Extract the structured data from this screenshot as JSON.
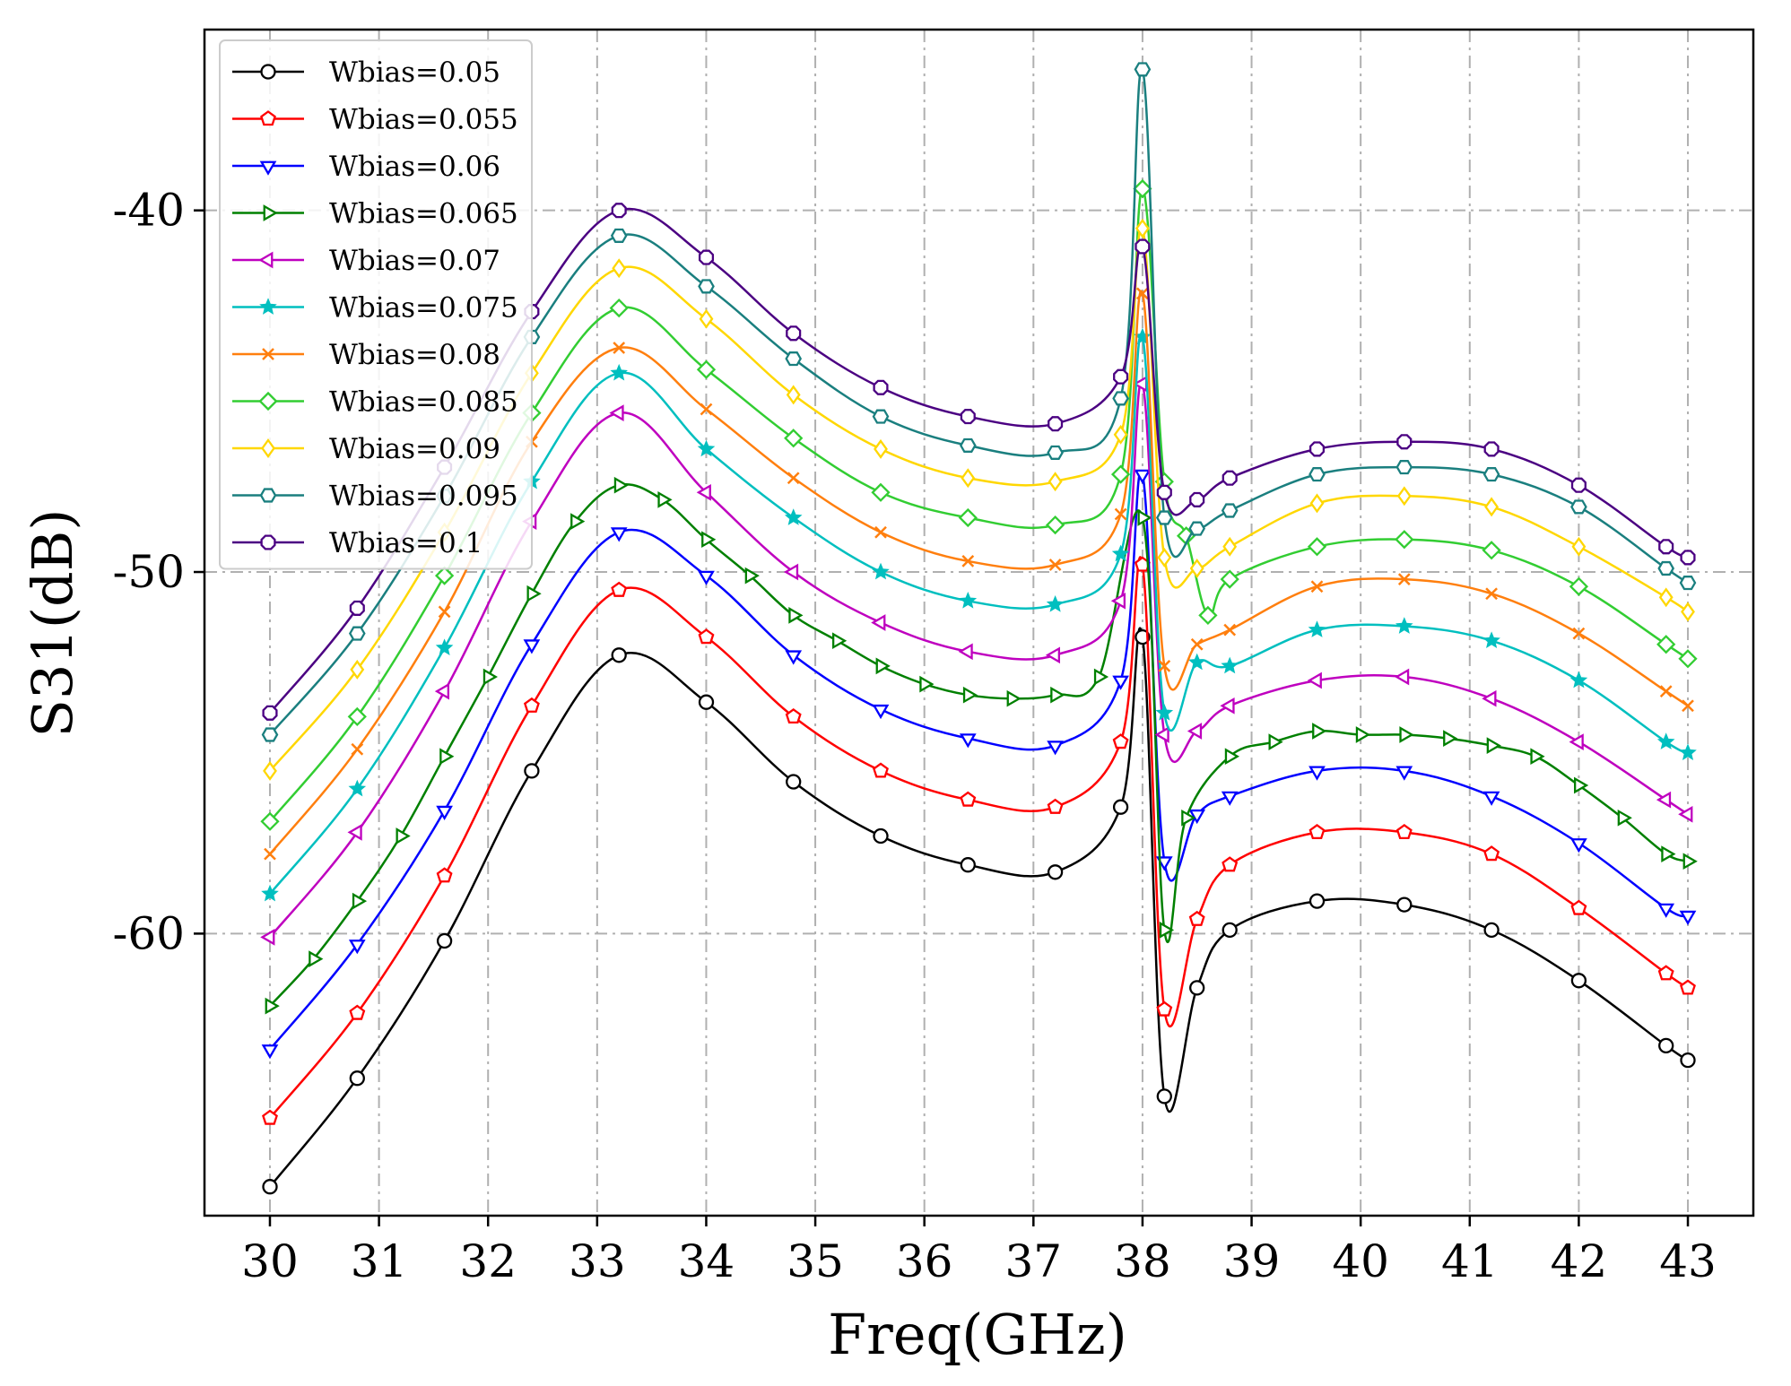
{
  "chart_data": {
    "type": "line",
    "title": "",
    "xlabel": "Freq(GHz)",
    "ylabel": "S31(dB)",
    "xlim": [
      29.4,
      43.6
    ],
    "ylim": [
      -67.8,
      -35.0
    ],
    "xticks": [
      30,
      31,
      32,
      33,
      34,
      35,
      36,
      37,
      38,
      39,
      40,
      41,
      42,
      43
    ],
    "yticks": [
      -60,
      -50,
      -40
    ],
    "grid": true,
    "legend_position": "top-left",
    "series": [
      {
        "name": "Wbias=0.05",
        "color": "#000000",
        "marker": "circle",
        "x": [
          30,
          30.8,
          31.6,
          32.4,
          33.2,
          34,
          34.8,
          35.6,
          36.4,
          37.2,
          37.8,
          38.0,
          38.2,
          38.5,
          38.8,
          39.6,
          40.4,
          41.2,
          42,
          42.8,
          43
        ],
        "y": [
          -67.0,
          -64.0,
          -60.2,
          -55.5,
          -52.3,
          -53.6,
          -55.8,
          -57.3,
          -58.1,
          -58.3,
          -56.5,
          -51.8,
          -64.5,
          -61.5,
          -59.9,
          -59.1,
          -59.2,
          -59.9,
          -61.3,
          -63.1,
          -63.5
        ]
      },
      {
        "name": "Wbias=0.055",
        "color": "#ff0000",
        "marker": "pentagon",
        "x": [
          30,
          30.8,
          31.6,
          32.4,
          33.2,
          34,
          34.8,
          35.6,
          36.4,
          37.2,
          37.8,
          38.0,
          38.2,
          38.5,
          38.8,
          39.6,
          40.4,
          41.2,
          42,
          42.8,
          43
        ],
        "y": [
          -65.1,
          -62.2,
          -58.4,
          -53.7,
          -50.5,
          -51.8,
          -54.0,
          -55.5,
          -56.3,
          -56.5,
          -54.7,
          -49.8,
          -62.1,
          -59.6,
          -58.1,
          -57.2,
          -57.2,
          -57.8,
          -59.3,
          -61.1,
          -61.5
        ]
      },
      {
        "name": "Wbias=0.06",
        "color": "#0000ff",
        "marker": "triangle-down",
        "x": [
          30,
          30.8,
          31.6,
          32.4,
          33.2,
          34,
          34.8,
          35.6,
          36.4,
          37.2,
          37.8,
          38.0,
          38.2,
          38.5,
          38.8,
          39.6,
          40.4,
          41.2,
          42,
          42.8,
          43
        ],
        "y": [
          -63.2,
          -60.3,
          -56.6,
          -52.0,
          -48.9,
          -50.1,
          -52.3,
          -53.8,
          -54.6,
          -54.8,
          -53.0,
          -47.3,
          -58.0,
          -56.7,
          -56.2,
          -55.5,
          -55.5,
          -56.2,
          -57.5,
          -59.3,
          -59.5
        ]
      },
      {
        "name": "Wbias=0.065",
        "color": "#008000",
        "marker": "triangle-right",
        "x": [
          30,
          30.4,
          30.8,
          31.2,
          31.6,
          32.0,
          32.4,
          32.8,
          33.2,
          33.6,
          34.0,
          34.4,
          34.8,
          35.2,
          35.6,
          36.0,
          36.4,
          36.8,
          37.2,
          37.6,
          38.0,
          38.2,
          38.4,
          38.8,
          39.2,
          39.6,
          40.0,
          40.4,
          40.8,
          41.2,
          41.6,
          42.0,
          42.4,
          42.8,
          43.0
        ],
        "y": [
          -62.0,
          -60.7,
          -59.1,
          -57.3,
          -55.1,
          -52.9,
          -50.6,
          -48.6,
          -47.6,
          -48.0,
          -49.1,
          -50.1,
          -51.2,
          -51.9,
          -52.6,
          -53.1,
          -53.4,
          -53.5,
          -53.4,
          -52.9,
          -48.5,
          -59.9,
          -56.8,
          -55.1,
          -54.7,
          -54.4,
          -54.5,
          -54.5,
          -54.6,
          -54.8,
          -55.1,
          -55.9,
          -56.8,
          -57.8,
          -58.0
        ]
      },
      {
        "name": "Wbias=0.07",
        "color": "#bf00bf",
        "marker": "triangle-left",
        "x": [
          30,
          30.8,
          31.6,
          32.4,
          33.2,
          34,
          34.8,
          35.6,
          36.4,
          37.2,
          37.8,
          38.0,
          38.2,
          38.5,
          38.8,
          39.6,
          40.4,
          41.2,
          42,
          42.8,
          43
        ],
        "y": [
          -60.1,
          -57.2,
          -53.3,
          -48.6,
          -45.6,
          -47.8,
          -50.0,
          -51.4,
          -52.2,
          -52.3,
          -50.8,
          -44.8,
          -54.5,
          -54.4,
          -53.7,
          -53.0,
          -52.9,
          -53.5,
          -54.7,
          -56.3,
          -56.7
        ]
      },
      {
        "name": "Wbias=0.075",
        "color": "#00bfbf",
        "marker": "star",
        "x": [
          30,
          30.8,
          31.6,
          32.4,
          33.2,
          34,
          34.8,
          35.6,
          36.4,
          37.2,
          37.8,
          38.0,
          38.2,
          38.5,
          38.8,
          39.6,
          40.4,
          41.2,
          42,
          42.8,
          43
        ],
        "y": [
          -58.9,
          -56.0,
          -52.1,
          -47.5,
          -44.5,
          -46.6,
          -48.5,
          -50.0,
          -50.8,
          -50.9,
          -49.5,
          -43.5,
          -53.9,
          -52.5,
          -52.6,
          -51.6,
          -51.5,
          -51.9,
          -53.0,
          -54.7,
          -55.0
        ]
      },
      {
        "name": "Wbias=0.08",
        "color": "#ff7f0e",
        "marker": "x",
        "x": [
          30,
          30.8,
          31.6,
          32.4,
          33.2,
          34,
          34.8,
          35.6,
          36.4,
          37.2,
          37.8,
          38.0,
          38.2,
          38.5,
          38.8,
          39.6,
          40.4,
          41.2,
          42,
          42.8,
          43
        ],
        "y": [
          -57.8,
          -54.9,
          -51.1,
          -46.4,
          -43.8,
          -45.5,
          -47.4,
          -48.9,
          -49.7,
          -49.8,
          -48.4,
          -42.3,
          -52.6,
          -52.0,
          -51.6,
          -50.4,
          -50.2,
          -50.6,
          -51.7,
          -53.3,
          -53.7
        ]
      },
      {
        "name": "Wbias=0.085",
        "color": "#32cd32",
        "marker": "diamond",
        "x": [
          30,
          30.8,
          31.6,
          32.4,
          33.2,
          34,
          34.8,
          35.6,
          36.4,
          37.2,
          37.8,
          38.0,
          38.2,
          38.4,
          38.6,
          38.8,
          39.6,
          40.4,
          41.2,
          42,
          42.8,
          43
        ],
        "y": [
          -56.9,
          -54.0,
          -50.1,
          -45.6,
          -42.7,
          -44.4,
          -46.3,
          -47.8,
          -48.5,
          -48.7,
          -47.3,
          -39.4,
          -47.5,
          -49.0,
          -51.2,
          -50.2,
          -49.3,
          -49.1,
          -49.4,
          -50.4,
          -52.0,
          -52.4
        ]
      },
      {
        "name": "Wbias=0.09",
        "color": "#ffd700",
        "marker": "thin-diamond",
        "x": [
          30,
          30.8,
          31.6,
          32.4,
          33.2,
          34,
          34.8,
          35.6,
          36.4,
          37.2,
          37.8,
          38.0,
          38.2,
          38.5,
          38.8,
          39.6,
          40.4,
          41.2,
          42,
          42.8,
          43
        ],
        "y": [
          -55.5,
          -52.7,
          -48.9,
          -44.5,
          -41.6,
          -43.0,
          -45.1,
          -46.6,
          -47.4,
          -47.5,
          -46.2,
          -40.5,
          -49.6,
          -49.9,
          -49.3,
          -48.1,
          -47.9,
          -48.2,
          -49.3,
          -50.7,
          -51.1
        ]
      },
      {
        "name": "Wbias=0.095",
        "color": "#1a7f7f",
        "marker": "hexagon",
        "x": [
          30,
          30.8,
          31.6,
          32.4,
          33.2,
          34,
          34.8,
          35.6,
          36.4,
          37.2,
          37.8,
          38.0,
          38.2,
          38.5,
          38.8,
          39.6,
          40.4,
          41.2,
          42,
          42.8,
          43
        ],
        "y": [
          -54.5,
          -51.7,
          -47.9,
          -43.5,
          -40.7,
          -42.1,
          -44.1,
          -45.7,
          -46.5,
          -46.7,
          -45.2,
          -36.1,
          -48.5,
          -48.8,
          -48.3,
          -47.3,
          -47.1,
          -47.3,
          -48.2,
          -49.9,
          -50.3
        ]
      },
      {
        "name": "Wbias=0.1",
        "color": "#4b0082",
        "marker": "octagon",
        "x": [
          30,
          30.8,
          31.6,
          32.4,
          33.2,
          34,
          34.8,
          35.6,
          36.4,
          37.2,
          37.8,
          38.0,
          38.2,
          38.5,
          38.8,
          39.6,
          40.4,
          41.2,
          42,
          42.8,
          43
        ],
        "y": [
          -53.9,
          -51.0,
          -47.1,
          -42.8,
          -40.0,
          -41.3,
          -43.4,
          -44.9,
          -45.7,
          -45.9,
          -44.6,
          -41.0,
          -47.8,
          -48.0,
          -47.4,
          -46.6,
          -46.4,
          -46.6,
          -47.6,
          -49.3,
          -49.6
        ]
      }
    ]
  }
}
